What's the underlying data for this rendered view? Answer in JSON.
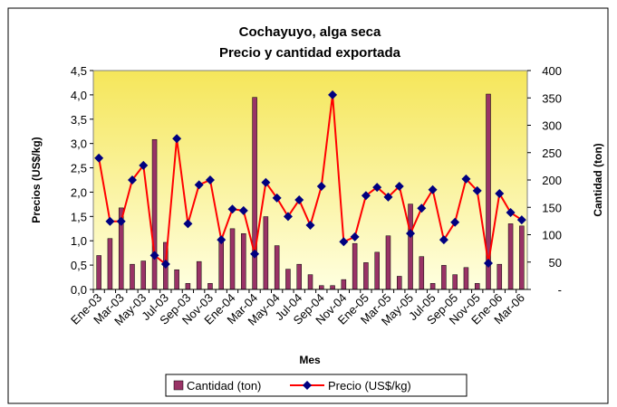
{
  "chart_data": {
    "type": "bar_line",
    "title": "Cochayuyo, alga seca",
    "subtitle": "Precio y cantidad exportada",
    "x_label": "Mes",
    "y_label": "Precios (US$/kg)",
    "y2_label": "Cantidad (ton)",
    "categories": [
      "Ene-03",
      null,
      "Mar-03",
      null,
      "May-03",
      null,
      "Jul-03",
      null,
      "Sep-03",
      null,
      "Nov-03",
      null,
      "Ene-04",
      null,
      "Mar-04",
      null,
      "May-04",
      null,
      "Jul-04",
      null,
      "Sep-04",
      null,
      "Nov-04",
      null,
      "Ene-05",
      null,
      "Mar-05",
      null,
      "May-05",
      null,
      "Jul-05",
      null,
      "Sep-05",
      null,
      "Nov-05",
      null,
      "Ene-06",
      null,
      "Mar-06"
    ],
    "series": [
      {
        "name": "Cantidad (ton)",
        "color": "#993366",
        "axis": "y2",
        "kind": "bar",
        "values": [
          62,
          93,
          149,
          46,
          52,
          274,
          86,
          36,
          11,
          51,
          11,
          89,
          111,
          102,
          351,
          133,
          80,
          37,
          46,
          27,
          7,
          7,
          18,
          84,
          49,
          68,
          98,
          24,
          156,
          60,
          11,
          44,
          27,
          40,
          11,
          357,
          46,
          120,
          116
        ]
      },
      {
        "name": "Precio (US$/kg)",
        "color": "#ff0000",
        "marker_color": "#000080",
        "kind": "line",
        "values": [
          2.7,
          1.4,
          1.4,
          2.25,
          2.55,
          0.7,
          0.52,
          3.1,
          1.35,
          2.15,
          2.25,
          1.02,
          1.65,
          1.62,
          0.73,
          2.2,
          1.88,
          1.5,
          1.84,
          1.32,
          2.12,
          4.0,
          0.98,
          1.08,
          1.93,
          2.1,
          1.9,
          2.12,
          1.15,
          1.67,
          2.05,
          1.02,
          1.38,
          2.27,
          2.03,
          0.54,
          1.97,
          1.58,
          1.43
        ]
      }
    ],
    "ylim": [
      0,
      4.5
    ],
    "yticks": [
      {
        "value": 0,
        "label": "0,0"
      },
      {
        "value": 0.5,
        "label": "0,5"
      },
      {
        "value": 1,
        "label": "1,0"
      },
      {
        "value": 1.5,
        "label": "1,5"
      },
      {
        "value": 2,
        "label": "2,0"
      },
      {
        "value": 2.5,
        "label": "2,5"
      },
      {
        "value": 3,
        "label": "3,0"
      },
      {
        "value": 3.5,
        "label": "3,5"
      },
      {
        "value": 4,
        "label": "4,0"
      },
      {
        "value": 4.5,
        "label": "4,5"
      }
    ],
    "y2lim": [
      0,
      400
    ],
    "y2ticks": [
      {
        "value": 0,
        "label": "-"
      },
      50,
      100,
      150,
      200,
      250,
      300,
      350,
      400
    ],
    "legend": "bottom"
  }
}
